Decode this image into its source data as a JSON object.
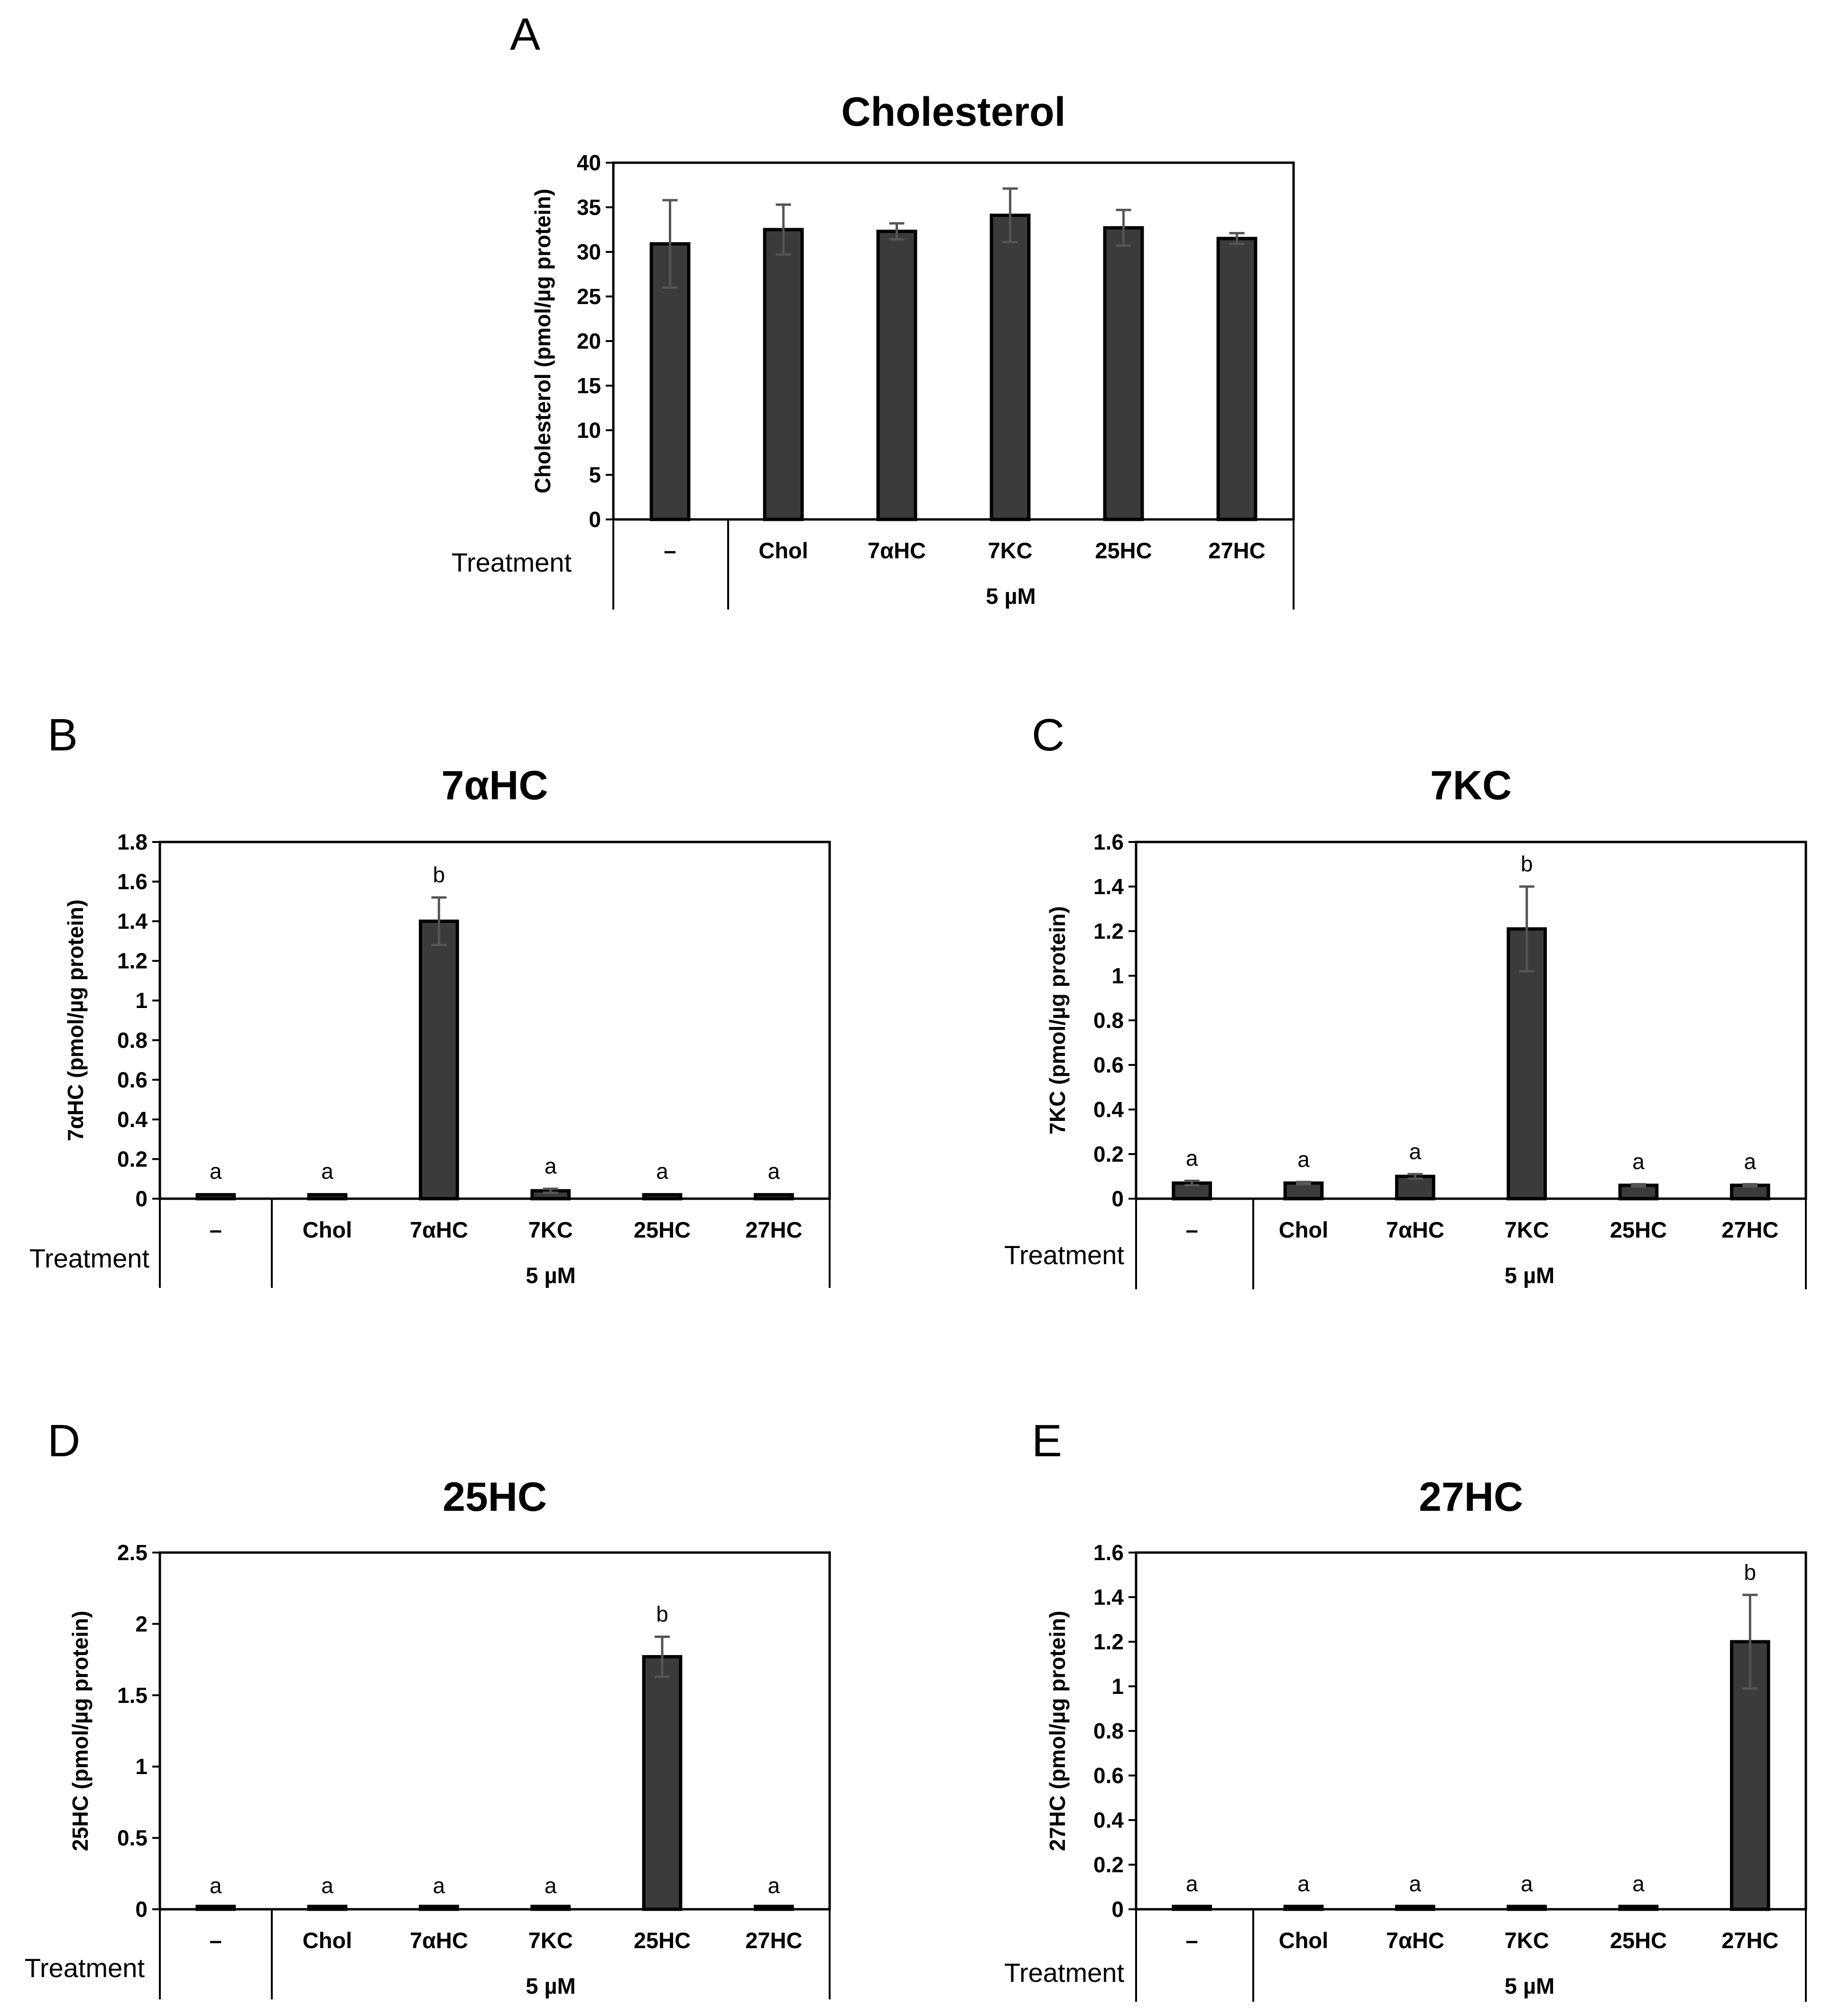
{
  "figure": {
    "treatment_label": "Treatment",
    "dose_label": "5 µM",
    "colors": {
      "bar_fill": "#3b3b3b",
      "bar_stroke": "#000000",
      "error_bar": "#555555",
      "axis": "#000000",
      "background": "#ffffff"
    }
  },
  "chart_data": [
    {
      "panel": "A",
      "type": "bar",
      "title": "Cholesterol",
      "xlabel": "Treatment",
      "ylabel": "Cholesterol (pmol/µg protein)",
      "categories": [
        "–",
        "Chol",
        "7αHC",
        "7KC",
        "25HC",
        "27HC"
      ],
      "values": [
        30.9,
        32.5,
        32.3,
        34.1,
        32.7,
        31.5
      ],
      "errors": [
        4.9,
        2.8,
        0.9,
        3.0,
        2.0,
        0.6
      ],
      "significance": [
        "",
        "",
        "",
        "",
        "",
        ""
      ],
      "ylim": [
        0,
        40
      ],
      "yticks": [
        "0",
        "5",
        "10",
        "15",
        "20",
        "25",
        "30",
        "35",
        "40"
      ],
      "group_label": "5 µM"
    },
    {
      "panel": "B",
      "type": "bar",
      "title": "7αHC",
      "xlabel": "Treatment",
      "ylabel": "7αHC (pmol/µg protein)",
      "categories": [
        "–",
        "Chol",
        "7αHC",
        "7KC",
        "25HC",
        "27HC"
      ],
      "values": [
        0.02,
        0.02,
        1.4,
        0.04,
        0.02,
        0.02
      ],
      "errors": [
        0.004,
        0.004,
        0.12,
        0.01,
        0.004,
        0.004
      ],
      "significance": [
        "a",
        "a",
        "b",
        "a",
        "a",
        "a"
      ],
      "ylim": [
        0,
        1.8
      ],
      "yticks": [
        "0",
        "0.2",
        "0.4",
        "0.6",
        "0.8",
        "1",
        "1.2",
        "1.4",
        "1.6",
        "1.8"
      ],
      "group_label": "5 µM"
    },
    {
      "panel": "C",
      "type": "bar",
      "title": "7KC",
      "xlabel": "Treatment",
      "ylabel": "7KC (pmol/µg protein)",
      "categories": [
        "–",
        "Chol",
        "7αHC",
        "7KC",
        "25HC",
        "27HC"
      ],
      "values": [
        0.07,
        0.07,
        0.1,
        1.21,
        0.06,
        0.06
      ],
      "errors": [
        0.01,
        0.005,
        0.01,
        0.19,
        0.005,
        0.005
      ],
      "significance": [
        "a",
        "a",
        "a",
        "b",
        "a",
        "a"
      ],
      "ylim": [
        0,
        1.6
      ],
      "yticks": [
        "0",
        "0.2",
        "0.4",
        "0.6",
        "0.8",
        "1",
        "1.2",
        "1.4",
        "1.6"
      ],
      "group_label": "5 µM"
    },
    {
      "panel": "D",
      "type": "bar",
      "title": "25HC",
      "xlabel": "Treatment",
      "ylabel": "25HC (pmol/µg protein)",
      "categories": [
        "–",
        "Chol",
        "7αHC",
        "7KC",
        "25HC",
        "27HC"
      ],
      "values": [
        0.005,
        0.005,
        0.005,
        0.005,
        1.77,
        0.005
      ],
      "errors": [
        0.002,
        0.002,
        0.002,
        0.002,
        0.14,
        0.002
      ],
      "significance": [
        "a",
        "a",
        "a",
        "a",
        "b",
        "a"
      ],
      "ylim": [
        0,
        2.5
      ],
      "yticks": [
        "0",
        "0.5",
        "1",
        "1.5",
        "2",
        "2.5"
      ],
      "group_label": "5 µM"
    },
    {
      "panel": "E",
      "type": "bar",
      "title": "27HC",
      "xlabel": "Treatment",
      "ylabel": "27HC (pmol/µg protein)",
      "categories": [
        "–",
        "Chol",
        "7αHC",
        "7KC",
        "25HC",
        "27HC"
      ],
      "values": [
        0.01,
        0.01,
        0.01,
        0.01,
        0.01,
        1.2
      ],
      "errors": [
        0.003,
        0.003,
        0.003,
        0.003,
        0.003,
        0.21
      ],
      "significance": [
        "a",
        "a",
        "a",
        "a",
        "a",
        "b"
      ],
      "ylim": [
        0,
        1.6
      ],
      "yticks": [
        "0",
        "0.2",
        "0.4",
        "0.6",
        "0.8",
        "1",
        "1.2",
        "1.4",
        "1.6"
      ],
      "group_label": "5 µM"
    }
  ]
}
